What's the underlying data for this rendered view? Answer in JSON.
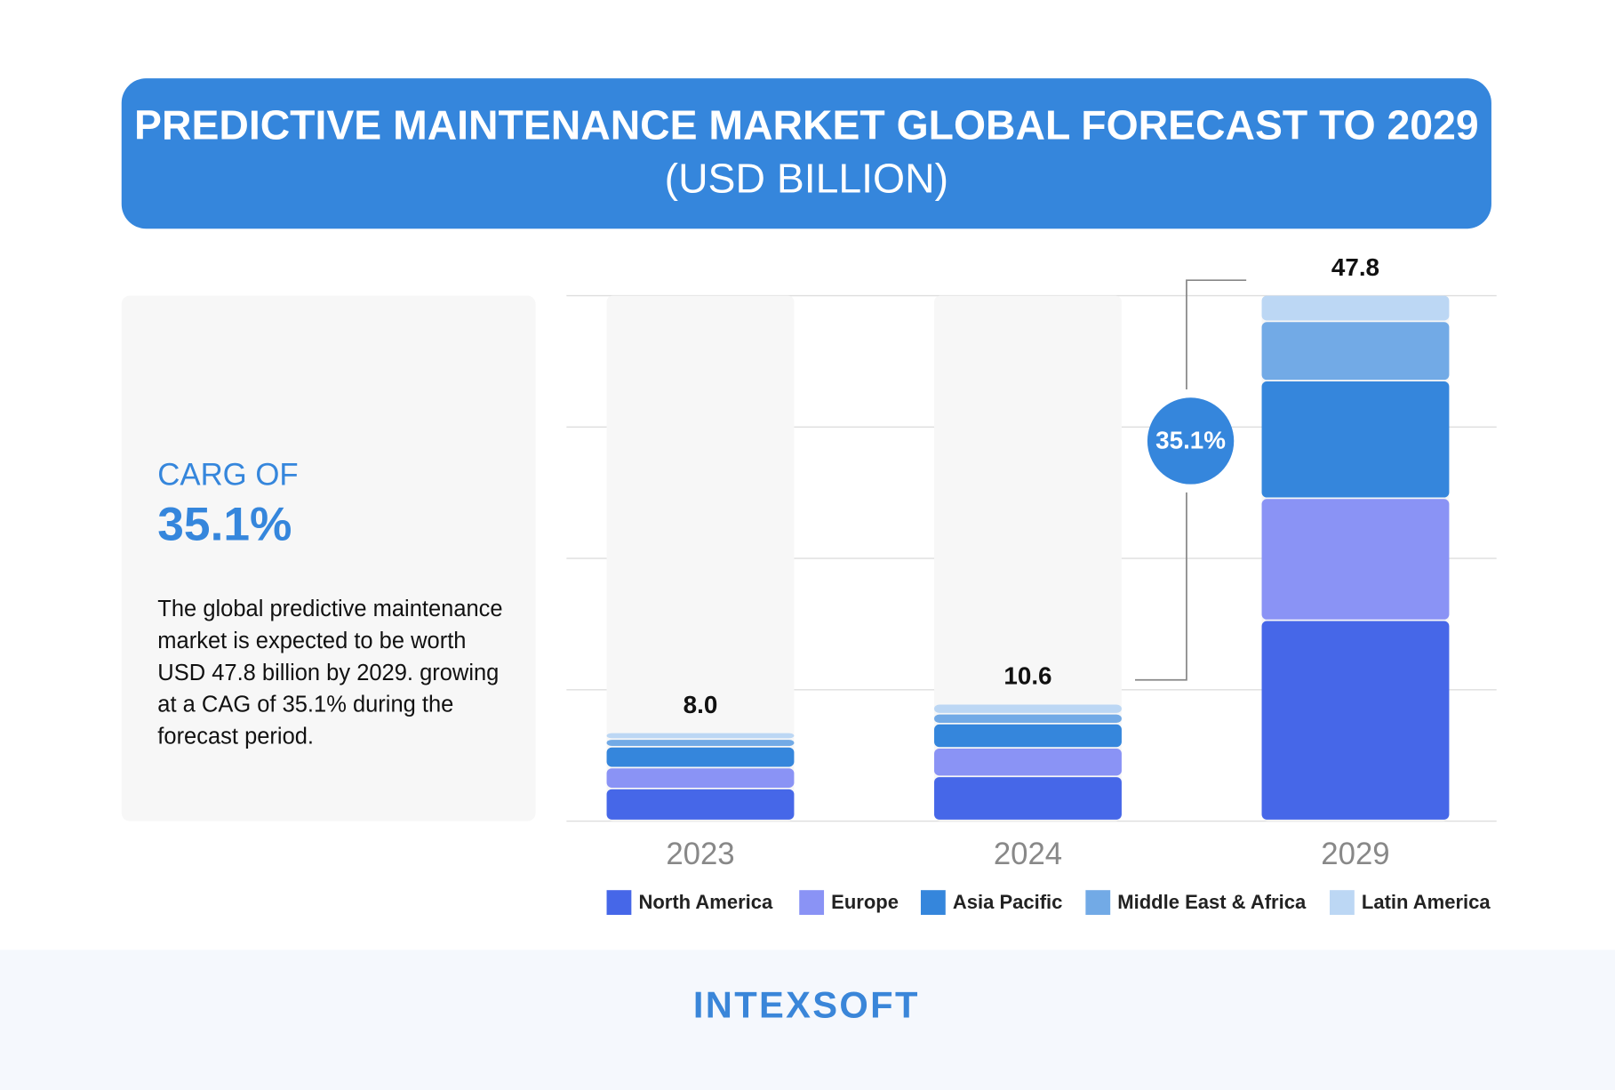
{
  "panel": {
    "heading": "CARG OF",
    "value": "35.1%",
    "text": "The global predictive maintenance market is expected to be worth USD 47.8 billion by 2029. growing at a CAG of 35.1% during the forecast period."
  },
  "logo": "INTEXSOFT",
  "chart_data": {
    "type": "stacked-bar",
    "title": "PREDICTIVE MAINTENANCE MARKET GLOBAL FORECAST TO 2029",
    "title_unit": "(USD BILLION)",
    "annotation": "35.1%",
    "categories": [
      "2023",
      "2024",
      "2029"
    ],
    "series": [
      {
        "name": "North America",
        "color": "#4667e8",
        "values": [
          2.9,
          4.0,
          18.2
        ]
      },
      {
        "name": "Europe",
        "color": "#8a93f5",
        "values": [
          1.9,
          2.6,
          11.1
        ]
      },
      {
        "name": "Asia Pacific",
        "color": "#3586dc",
        "values": [
          1.9,
          2.2,
          10.7
        ]
      },
      {
        "name": "Middle East & Africa",
        "color": "#72aae6",
        "values": [
          0.7,
          0.9,
          5.4
        ]
      },
      {
        "name": "Latin America",
        "color": "#bcd7f4",
        "values": [
          0.6,
          0.9,
          2.4
        ]
      }
    ],
    "totals": [
      8,
      10.6,
      47.8
    ],
    "total_labels": [
      "8.0",
      "10.6",
      "47.8"
    ],
    "ylim": [
      0,
      47.8
    ],
    "yticks": [
      0,
      11.95,
      23.9,
      35.85,
      47.8
    ],
    "grid": true
  }
}
